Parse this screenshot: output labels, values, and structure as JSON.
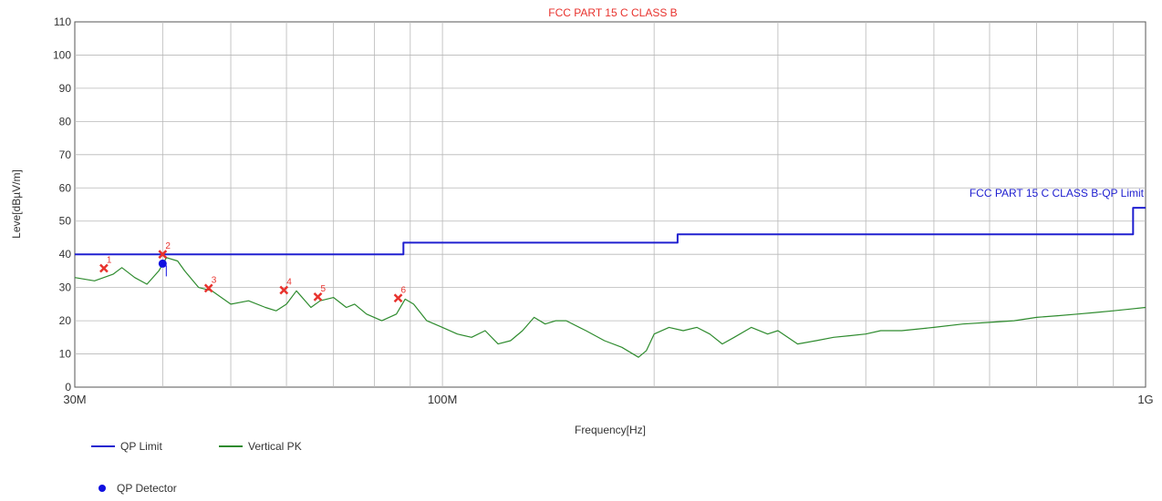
{
  "chart_data": {
    "type": "line",
    "title": "FCC PART 15 C CLASS B",
    "xlabel": "Frequency[Hz]",
    "ylabel": "Leve[dBµV/m]",
    "x_scale": "log",
    "xlim": [
      30000000,
      1000000000
    ],
    "ylim": [
      0,
      110
    ],
    "yticks": [
      0,
      10,
      20,
      30,
      40,
      50,
      60,
      70,
      80,
      90,
      100,
      110
    ],
    "xticks": [
      {
        "value": 30000000,
        "label": "30M"
      },
      {
        "value": 100000000,
        "label": "100M"
      },
      {
        "value": 1000000000,
        "label": "1G"
      }
    ],
    "grid": true,
    "limit_annotation": "FCC PART 15 C CLASS B-QP Limit",
    "colors": {
      "title": "#e8322d",
      "limit": "#2020d0",
      "trace": "#2e8b2e",
      "marker": "#e8322d",
      "detector": "#1010e0",
      "grid": "#b8b8b8"
    },
    "series": [
      {
        "name": "QP Limit",
        "step": true,
        "x": [
          30000000,
          88000000,
          88000000,
          216000000,
          216000000,
          960000000,
          960000000,
          1000000000
        ],
        "y": [
          40,
          40,
          43.5,
          43.5,
          46,
          46,
          54,
          54
        ]
      },
      {
        "name": "Vertical PK",
        "x": [
          30000000,
          32000000,
          34000000,
          35000000,
          36500000,
          38000000,
          39500000,
          40500000,
          42000000,
          43000000,
          45000000,
          47000000,
          50000000,
          53000000,
          56000000,
          58000000,
          60000000,
          62000000,
          65000000,
          67000000,
          70000000,
          73000000,
          75000000,
          78000000,
          82000000,
          86000000,
          88500000,
          91000000,
          95000000,
          100000000,
          105000000,
          110000000,
          115000000,
          120000000,
          125000000,
          130000000,
          135000000,
          140000000,
          145000000,
          150000000,
          160000000,
          170000000,
          180000000,
          190000000,
          195000000,
          200000000,
          210000000,
          220000000,
          230000000,
          240000000,
          250000000,
          260000000,
          275000000,
          290000000,
          300000000,
          320000000,
          340000000,
          360000000,
          380000000,
          400000000,
          420000000,
          450000000,
          500000000,
          550000000,
          600000000,
          650000000,
          700000000,
          750000000,
          800000000,
          850000000,
          900000000,
          950000000,
          1000000000
        ],
        "y": [
          33,
          32,
          34,
          36,
          33,
          31,
          35,
          39,
          38,
          35,
          30,
          29,
          25,
          26,
          24,
          23,
          25,
          29,
          24,
          26,
          27,
          24,
          25,
          22,
          20,
          22,
          26.5,
          25,
          20,
          18,
          16,
          15,
          17,
          13,
          14,
          17,
          21,
          19,
          20,
          20,
          17,
          14,
          12,
          9,
          11,
          16,
          18,
          17,
          18,
          16,
          13,
          15,
          18,
          16,
          17,
          13,
          14,
          15,
          15.5,
          16,
          17,
          17,
          18,
          19,
          19.5,
          20,
          21,
          21.5,
          22,
          22.5,
          23,
          23.5,
          24
        ]
      }
    ],
    "peak_markers": [
      {
        "id": "1",
        "freq": 33000000,
        "level": 35.8
      },
      {
        "id": "2",
        "freq": 40000000,
        "level": 40
      },
      {
        "id": "3",
        "freq": 46500000,
        "level": 29.8
      },
      {
        "id": "4",
        "freq": 59500000,
        "level": 29.2
      },
      {
        "id": "5",
        "freq": 66500000,
        "level": 27.2
      },
      {
        "id": "6",
        "freq": 86500000,
        "level": 26.8
      }
    ],
    "qp_detector": [
      {
        "freq": 40000000,
        "level": 37.2
      }
    ],
    "legend": [
      {
        "label": "QP Limit",
        "kind": "line",
        "color": "#2020d0"
      },
      {
        "label": "Vertical PK",
        "kind": "line",
        "color": "#2e8b2e"
      },
      {
        "label": "QP Detector",
        "kind": "dot",
        "color": "#1010e0"
      }
    ]
  }
}
